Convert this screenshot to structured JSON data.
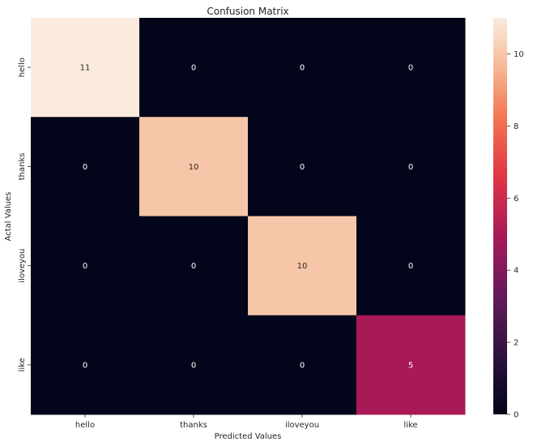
{
  "chart_data": {
    "type": "heatmap",
    "title": "Confusion Matrix",
    "xlabel": "Predicted Values",
    "ylabel": "Actal Values",
    "x_categories": [
      "hello",
      "thanks",
      "iloveyou",
      "like"
    ],
    "y_categories": [
      "hello",
      "thanks",
      "iloveyou",
      "like"
    ],
    "values": [
      [
        11,
        0,
        0,
        0
      ],
      [
        0,
        10,
        0,
        0
      ],
      [
        0,
        0,
        10,
        0
      ],
      [
        0,
        0,
        0,
        5
      ]
    ],
    "colorbar": {
      "vmin": 0,
      "vmax": 11,
      "ticks": [
        0,
        2,
        4,
        6,
        8,
        10
      ]
    },
    "colormap": "rocket"
  }
}
